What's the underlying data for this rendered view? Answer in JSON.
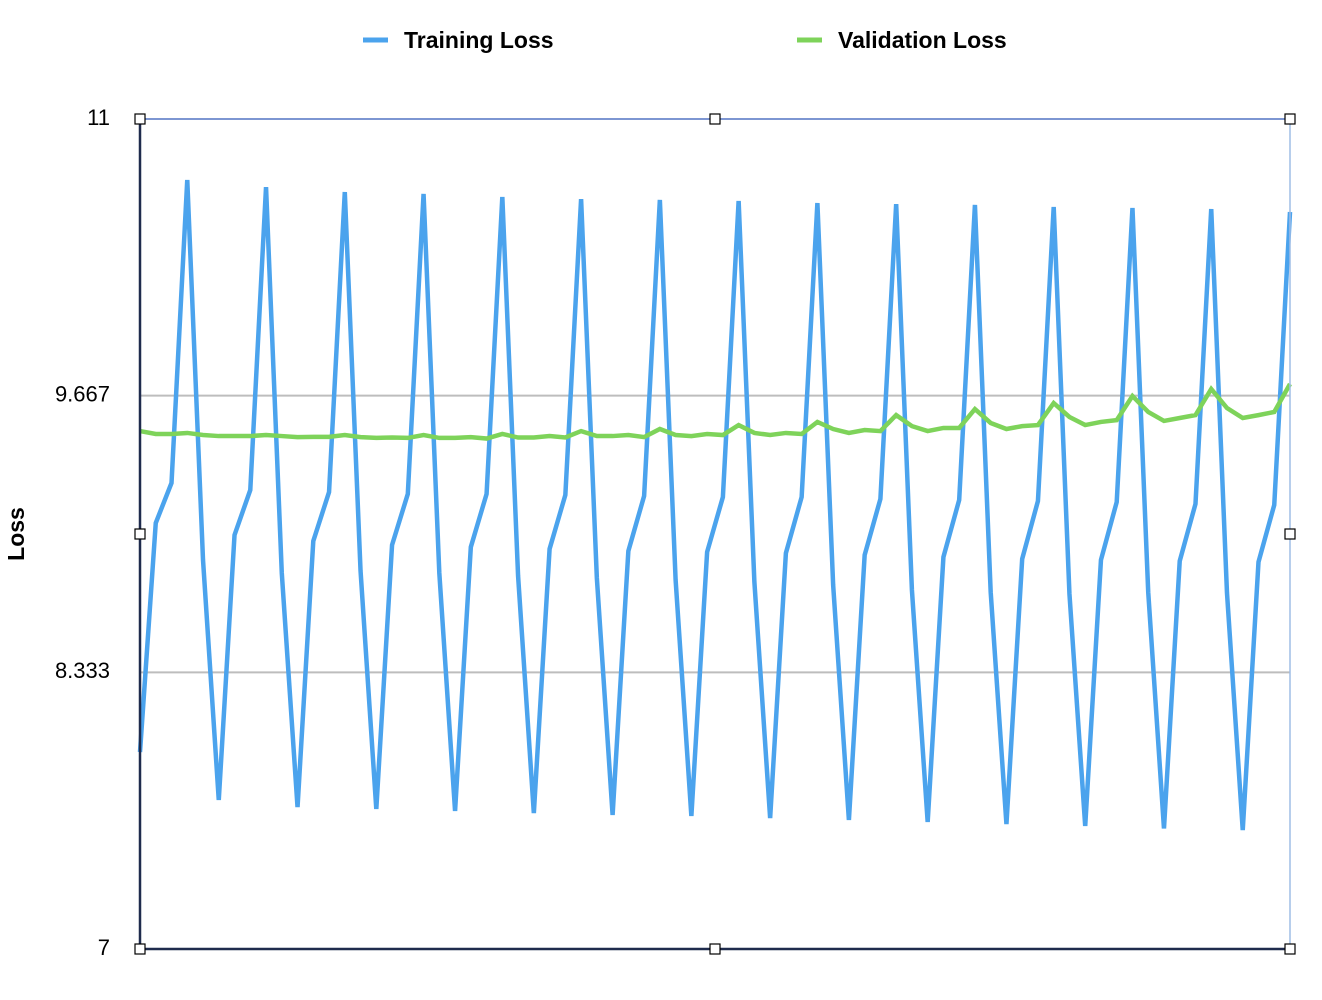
{
  "chart_data": {
    "type": "line",
    "y_label": "Loss",
    "ylim": [
      7,
      11
    ],
    "yticks": [
      7,
      8.333,
      9.667,
      11
    ],
    "grid": true,
    "legend": "top",
    "series": [
      {
        "name": "Training Loss",
        "color": "#4ba3ed",
        "values": [
          7.949,
          9.053,
          9.246,
          10.706,
          8.875,
          7.718,
          8.995,
          9.212,
          10.672,
          8.812,
          7.684,
          8.966,
          9.202,
          10.648,
          8.822,
          7.675,
          8.947,
          9.193,
          10.639,
          8.812,
          7.665,
          8.937,
          9.193,
          10.624,
          8.798,
          7.655,
          8.928,
          9.188,
          10.614,
          8.788,
          7.646,
          8.918,
          9.183,
          10.61,
          8.778,
          7.641,
          8.913,
          9.178,
          10.605,
          8.769,
          7.631,
          8.908,
          9.178,
          10.595,
          8.754,
          7.622,
          8.899,
          9.169,
          10.59,
          8.73,
          7.612,
          8.889,
          9.164,
          10.586,
          8.72,
          7.602,
          8.88,
          9.159,
          10.576,
          8.711,
          7.593,
          8.875,
          9.154,
          10.571,
          8.72,
          7.581,
          8.87,
          9.145,
          10.566,
          8.716,
          7.573,
          8.865,
          9.14,
          10.552
        ]
      },
      {
        "name": "Validation Loss",
        "color": "#7ed35a",
        "values": [
          9.496,
          9.482,
          9.482,
          9.487,
          9.477,
          9.472,
          9.472,
          9.472,
          9.477,
          9.472,
          9.467,
          9.468,
          9.468,
          9.477,
          9.467,
          9.463,
          9.465,
          9.463,
          9.477,
          9.463,
          9.463,
          9.467,
          9.46,
          9.482,
          9.465,
          9.465,
          9.472,
          9.465,
          9.496,
          9.472,
          9.472,
          9.477,
          9.467,
          9.506,
          9.477,
          9.472,
          9.482,
          9.477,
          9.525,
          9.487,
          9.477,
          9.487,
          9.482,
          9.54,
          9.506,
          9.487,
          9.501,
          9.496,
          9.573,
          9.52,
          9.496,
          9.511,
          9.511,
          9.602,
          9.535,
          9.506,
          9.52,
          9.525,
          9.631,
          9.564,
          9.525,
          9.54,
          9.549,
          9.665,
          9.588,
          9.545,
          9.559,
          9.573,
          9.699,
          9.607,
          9.559,
          9.573,
          9.588,
          9.723
        ]
      }
    ]
  }
}
